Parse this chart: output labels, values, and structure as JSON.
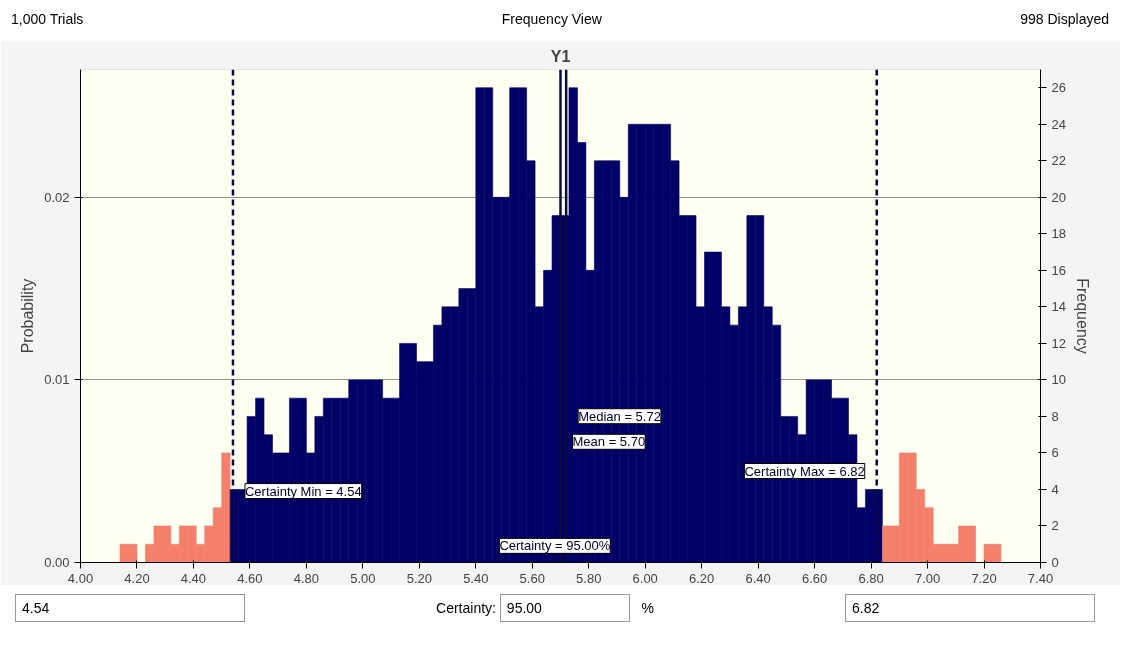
{
  "chart_data": {
    "type": "histogram",
    "title": "Frequency View",
    "subtitle": "Y1",
    "ylabel": "Probability",
    "y2label": "Frequency",
    "annotations": [
      "1,000 Trials",
      "998 Displayed",
      "Certainty = 95.00%",
      "4.54",
      "Certainty:",
      "95.00",
      "%",
      "6.82"
    ],
    "bins": [
      4.14,
      4.17,
      4.2,
      4.23,
      4.26,
      4.29,
      4.32,
      4.35,
      4.38,
      4.41,
      4.44,
      4.47,
      4.5,
      4.53,
      4.56,
      4.59,
      4.62,
      4.65,
      4.68,
      4.71,
      4.74,
      4.77,
      4.8,
      4.83,
      4.86,
      4.89,
      4.92,
      4.95,
      4.98,
      5.01,
      5.04,
      5.07,
      5.1,
      5.13,
      5.16,
      5.19,
      5.22,
      5.25,
      5.28,
      5.31,
      5.34,
      5.37,
      5.4,
      5.43,
      5.46,
      5.49,
      5.52,
      5.55,
      5.58,
      5.61,
      5.64,
      5.67,
      5.7,
      5.73,
      5.76,
      5.79,
      5.82,
      5.85,
      5.88,
      5.91,
      5.94,
      5.97,
      6.0,
      6.03,
      6.06,
      6.09,
      6.12,
      6.15,
      6.18,
      6.21,
      6.24,
      6.27,
      6.3,
      6.33,
      6.36,
      6.39,
      6.42,
      6.45,
      6.48,
      6.51,
      6.54,
      6.57,
      6.6,
      6.63,
      6.66,
      6.69,
      6.72,
      6.75,
      6.78,
      6.81,
      6.84,
      6.87,
      6.9,
      6.93,
      6.96,
      6.99,
      7.02,
      7.05,
      7.08,
      7.11,
      7.14,
      7.17,
      7.2,
      7.23,
      7.26
    ],
    "series": [
      {
        "axis": "y2",
        "values": [
          1,
          1,
          0,
          1,
          2,
          2,
          1,
          2,
          2,
          1,
          2,
          3,
          6,
          4,
          4,
          8,
          9,
          7,
          6,
          6,
          9,
          9,
          6,
          8,
          9,
          9,
          9,
          10,
          10,
          10,
          10,
          9,
          9,
          12,
          12,
          11,
          11,
          13,
          14,
          14,
          15,
          15,
          26,
          26,
          20,
          20,
          26,
          26,
          22,
          14,
          16,
          19,
          19,
          26,
          23,
          16,
          22,
          22,
          22,
          20,
          24,
          24,
          24,
          24,
          24,
          22,
          19,
          19,
          14,
          17,
          17,
          14,
          13,
          14,
          19,
          19,
          14,
          13,
          8,
          8,
          7,
          10,
          10,
          10,
          9,
          9,
          7,
          3,
          4,
          4,
          2,
          2,
          6,
          6,
          4,
          3,
          1,
          1,
          1,
          2,
          2,
          0,
          1,
          1
        ],
        "colors": [
          "#f4806c",
          "#f4806c",
          "#f4806c",
          "#f4806c",
          "#f4806c",
          "#f4806c",
          "#f4806c",
          "#f4806c",
          "#f4806c",
          "#f4806c",
          "#f4806c",
          "#f4806c",
          "#f4806c",
          "#000066",
          "#000066",
          "#000066",
          "#000066",
          "#000066",
          "#000066",
          "#000066",
          "#000066",
          "#000066",
          "#000066",
          "#000066",
          "#000066",
          "#000066",
          "#000066",
          "#000066",
          "#000066",
          "#000066",
          "#000066",
          "#000066",
          "#000066",
          "#000066",
          "#000066",
          "#000066",
          "#000066",
          "#000066",
          "#000066",
          "#000066",
          "#000066",
          "#000066",
          "#000066",
          "#000066",
          "#000066",
          "#000066",
          "#000066",
          "#000066",
          "#000066",
          "#000066",
          "#000066",
          "#000066",
          "#000066",
          "#000066",
          "#000066",
          "#000066",
          "#000066",
          "#000066",
          "#000066",
          "#000066",
          "#000066",
          "#000066",
          "#000066",
          "#000066",
          "#000066",
          "#000066",
          "#000066",
          "#000066",
          "#000066",
          "#000066",
          "#000066",
          "#000066",
          "#000066",
          "#000066",
          "#000066",
          "#000066",
          "#000066",
          "#000066",
          "#000066",
          "#000066",
          "#000066",
          "#000066",
          "#000066",
          "#000066",
          "#000066",
          "#000066",
          "#000066",
          "#000066",
          "#000066",
          "#000066",
          "#f4806c",
          "#f4806c",
          "#f4806c",
          "#f4806c",
          "#f4806c",
          "#f4806c",
          "#f4806c",
          "#f4806c",
          "#f4806c",
          "#f4806c",
          "#f4806c",
          "#f4806c",
          "#f4806c",
          "#f4806c"
        ]
      }
    ],
    "xlim": [
      4.0,
      7.4
    ],
    "xticks": [
      {
        "value": 4.0,
        "label": "4.00"
      },
      {
        "value": 4.2,
        "label": "4.20"
      },
      {
        "value": 4.4,
        "label": "4.40"
      },
      {
        "value": 4.6,
        "label": "4.60"
      },
      {
        "value": 4.8,
        "label": "4.80"
      },
      {
        "value": 5.0,
        "label": "5.00"
      },
      {
        "value": 5.2,
        "label": "5.20"
      },
      {
        "value": 5.4,
        "label": "5.40"
      },
      {
        "value": 5.6,
        "label": "5.60"
      },
      {
        "value": 5.8,
        "label": "5.80"
      },
      {
        "value": 6.0,
        "label": "6.00"
      },
      {
        "value": 6.2,
        "label": "6.20"
      },
      {
        "value": 6.4,
        "label": "6.40"
      },
      {
        "value": 6.6,
        "label": "6.60"
      },
      {
        "value": 6.8,
        "label": "6.80"
      },
      {
        "value": 7.0,
        "label": "7.00"
      },
      {
        "value": 7.2,
        "label": "7.20"
      },
      {
        "value": 7.4,
        "label": "7.40"
      }
    ],
    "ylim": [
      0,
      0.027
    ],
    "yticks": [
      {
        "value": 0,
        "label": "0.00"
      },
      {
        "value": 0.01,
        "label": "0.01"
      },
      {
        "value": 0.02,
        "label": "0.02"
      }
    ],
    "y2lim": [
      0,
      27
    ],
    "y2ticks": [
      0,
      2,
      4,
      6,
      8,
      10,
      12,
      14,
      16,
      18,
      20,
      22,
      24,
      26
    ],
    "ref_lines": [
      {
        "axis": "x",
        "value": 4.54,
        "label": "Certainty Min = 4.54",
        "color": "#0a0a3c",
        "line_style": "dashed"
      },
      {
        "axis": "x",
        "value": 6.82,
        "label": "Certainty Max = 6.82",
        "color": "#0a0a3c",
        "line_style": "dashed"
      },
      {
        "axis": "x",
        "value": 5.72,
        "label": "Median = 5.72",
        "color": "#0a0a3c",
        "line_style": "solid"
      },
      {
        "axis": "x",
        "value": 5.7,
        "label": "Mean = 5.70",
        "color": "#0a0a3c",
        "line_style": "solid"
      }
    ],
    "grid": "y"
  }
}
